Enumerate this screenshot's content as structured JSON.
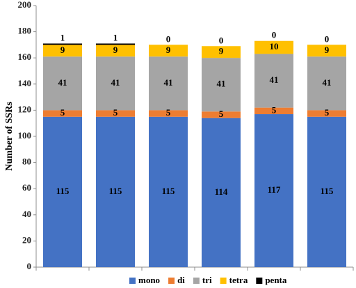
{
  "chart_data": {
    "type": "bar",
    "stacked": true,
    "categories": [
      "",
      "",
      "",
      "",
      "",
      ""
    ],
    "ylabel": "Number of SSRs",
    "xlabel": "",
    "title": "",
    "ylim": [
      0,
      200
    ],
    "yticks": [
      0,
      20,
      40,
      60,
      80,
      100,
      120,
      140,
      160,
      180,
      200
    ],
    "grid": false,
    "legend_position": "bottom",
    "series": [
      {
        "name": "mono",
        "color": "#4472C4",
        "values": [
          115,
          115,
          115,
          114,
          117,
          115
        ]
      },
      {
        "name": "di",
        "color": "#ED7D31",
        "values": [
          5,
          5,
          5,
          5,
          5,
          5
        ]
      },
      {
        "name": "tri",
        "color": "#A5A5A5",
        "values": [
          41,
          41,
          41,
          41,
          41,
          41
        ]
      },
      {
        "name": "tetra",
        "color": "#FFC000",
        "values": [
          9,
          9,
          9,
          9,
          10,
          9
        ]
      },
      {
        "name": "penta",
        "color": "#000000",
        "values": [
          1,
          1,
          0,
          0,
          0,
          0
        ]
      }
    ]
  }
}
